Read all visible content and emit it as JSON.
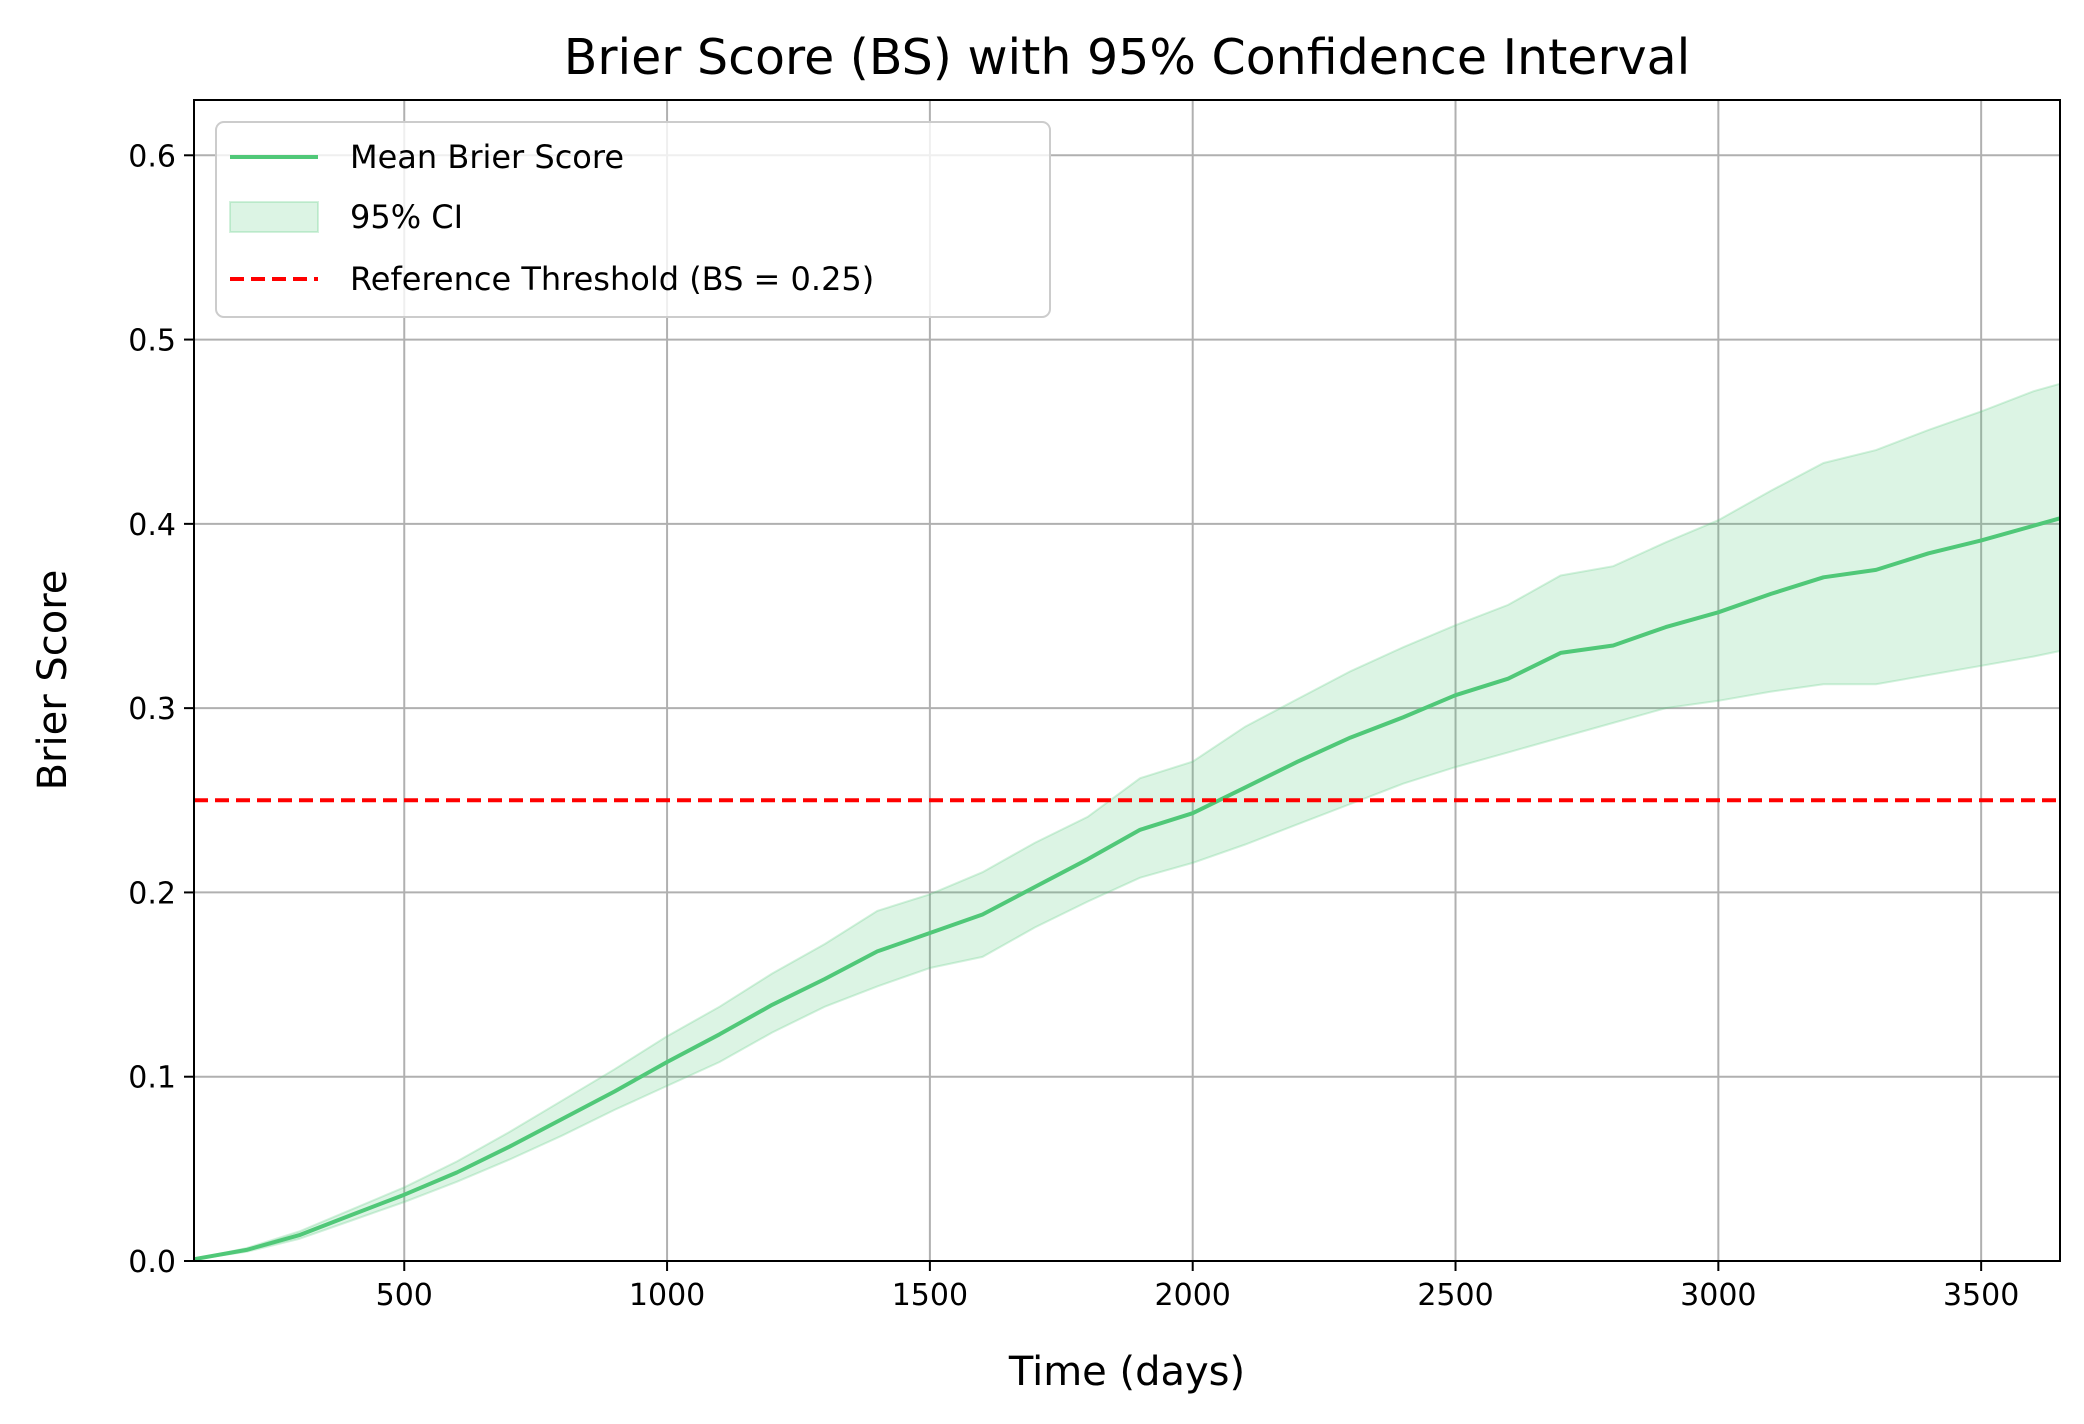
{
  "chart_data": {
    "type": "line",
    "title": "Brier Score (BS) with 95% Confidence Interval",
    "xlabel": "Time (days)",
    "ylabel": "Brier Score",
    "xlim": [
      100,
      3650
    ],
    "ylim": [
      0,
      0.63
    ],
    "x_ticks": [
      500,
      1000,
      1500,
      2000,
      2500,
      3000,
      3500
    ],
    "y_ticks": [
      0.0,
      0.1,
      0.2,
      0.3,
      0.4,
      0.5,
      0.6
    ],
    "grid": true,
    "legend_position": "top-left",
    "x": [
      100,
      200,
      300,
      400,
      500,
      600,
      700,
      800,
      900,
      1000,
      1100,
      1200,
      1300,
      1400,
      1500,
      1600,
      1700,
      1800,
      1900,
      2000,
      2100,
      2200,
      2300,
      2400,
      2500,
      2600,
      2700,
      2800,
      2900,
      3000,
      3100,
      3200,
      3300,
      3400,
      3500,
      3600,
      3650
    ],
    "series": [
      {
        "name": "Mean Brier Score",
        "color": "#50c878",
        "values": [
          0.001,
          0.006,
          0.014,
          0.025,
          0.036,
          0.048,
          0.062,
          0.077,
          0.092,
          0.108,
          0.123,
          0.139,
          0.153,
          0.168,
          0.178,
          0.188,
          0.203,
          0.218,
          0.234,
          0.243,
          0.257,
          0.271,
          0.284,
          0.295,
          0.307,
          0.316,
          0.33,
          0.334,
          0.344,
          0.352,
          0.362,
          0.371,
          0.375,
          0.384,
          0.391,
          0.399,
          0.403
        ]
      },
      {
        "name": "95% CI",
        "type": "band",
        "color": "#50c878",
        "upper": [
          0.001,
          0.007,
          0.016,
          0.028,
          0.04,
          0.054,
          0.07,
          0.087,
          0.104,
          0.122,
          0.138,
          0.156,
          0.172,
          0.19,
          0.199,
          0.211,
          0.227,
          0.241,
          0.262,
          0.271,
          0.29,
          0.305,
          0.32,
          0.333,
          0.345,
          0.356,
          0.372,
          0.377,
          0.39,
          0.402,
          0.418,
          0.433,
          0.44,
          0.451,
          0.461,
          0.472,
          0.476
        ],
        "lower": [
          0.001,
          0.005,
          0.012,
          0.022,
          0.032,
          0.043,
          0.055,
          0.068,
          0.082,
          0.095,
          0.108,
          0.124,
          0.138,
          0.149,
          0.159,
          0.165,
          0.181,
          0.195,
          0.208,
          0.216,
          0.226,
          0.237,
          0.248,
          0.259,
          0.268,
          0.276,
          0.284,
          0.292,
          0.3,
          0.304,
          0.309,
          0.313,
          0.313,
          0.318,
          0.323,
          0.328,
          0.331
        ]
      },
      {
        "name": "Reference Threshold (BS = 0.25)",
        "type": "hline",
        "color": "#ff0000",
        "value": 0.25
      }
    ]
  }
}
